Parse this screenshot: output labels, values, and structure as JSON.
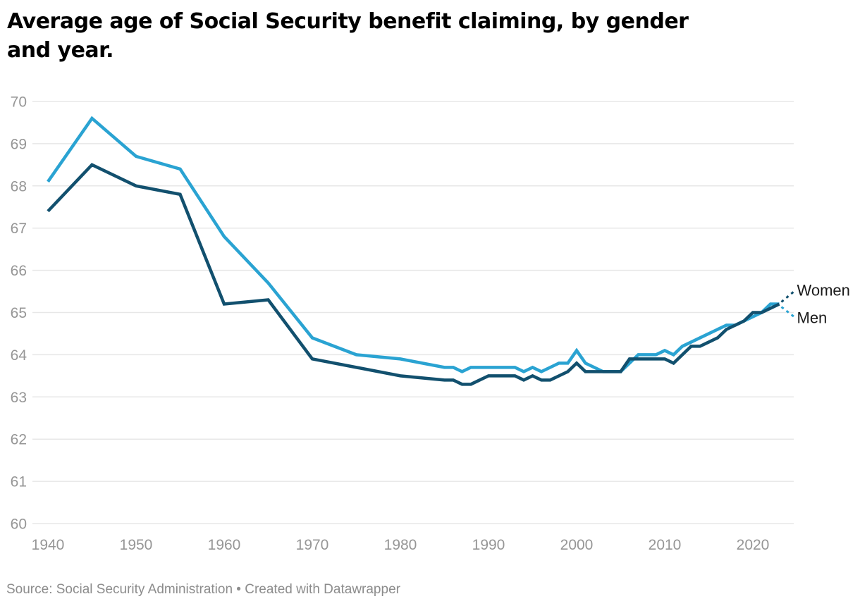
{
  "header": {
    "title_line1": "Average age of Social Security benefit claiming, by gender",
    "title_line2": "and year."
  },
  "source": {
    "text": "Source: Social Security Administration • Created with Datawrapper"
  },
  "colors": {
    "women_line": "#12506e",
    "men_line": "#2aa3d2",
    "gridline": "#e7e7e7",
    "axis_text": "#969696",
    "series_label_text": "#1b1b1b",
    "title_text": "#000000",
    "source_text": "#8c8c8c",
    "background": "#ffffff"
  },
  "chart_data": {
    "type": "line",
    "title": "Average age of Social Security benefit claiming, by gender and year.",
    "xlabel": "",
    "ylabel": "",
    "ylim": [
      60,
      70
    ],
    "xlim": [
      1940,
      2023
    ],
    "grid": "horizontal",
    "legend_position": "right-end-labels",
    "y_ticks": [
      70,
      69,
      68,
      67,
      66,
      65,
      64,
      63,
      62,
      61,
      60
    ],
    "x_ticks": [
      1940,
      1950,
      1960,
      1970,
      1980,
      1990,
      2000,
      2010,
      2020
    ],
    "x": [
      1940,
      1945,
      1950,
      1955,
      1960,
      1965,
      1970,
      1975,
      1980,
      1985,
      1986,
      1987,
      1988,
      1989,
      1990,
      1991,
      1992,
      1993,
      1994,
      1995,
      1996,
      1997,
      1998,
      1999,
      2000,
      2001,
      2002,
      2003,
      2004,
      2005,
      2006,
      2007,
      2008,
      2009,
      2010,
      2011,
      2012,
      2013,
      2014,
      2015,
      2016,
      2017,
      2018,
      2019,
      2020,
      2021,
      2022,
      2023
    ],
    "series": [
      {
        "name": "Men",
        "color": "#2aa3d2",
        "values": [
          68.1,
          69.6,
          68.7,
          68.4,
          66.8,
          65.7,
          64.4,
          64.0,
          63.9,
          63.7,
          63.7,
          63.6,
          63.7,
          63.7,
          63.7,
          63.7,
          63.7,
          63.7,
          63.6,
          63.7,
          63.6,
          63.7,
          63.8,
          63.8,
          64.1,
          63.8,
          63.7,
          63.6,
          63.6,
          63.6,
          63.8,
          64.0,
          64.0,
          64.0,
          64.1,
          64.0,
          64.2,
          64.3,
          64.4,
          64.5,
          64.6,
          64.7,
          64.7,
          64.8,
          64.9,
          65.0,
          65.2,
          65.2
        ]
      },
      {
        "name": "Women",
        "color": "#12506e",
        "values": [
          67.4,
          68.5,
          68.0,
          67.8,
          65.2,
          65.3,
          63.9,
          63.7,
          63.5,
          63.4,
          63.4,
          63.3,
          63.3,
          63.4,
          63.5,
          63.5,
          63.5,
          63.5,
          63.4,
          63.5,
          63.4,
          63.4,
          63.5,
          63.6,
          63.8,
          63.6,
          63.6,
          63.6,
          63.6,
          63.6,
          63.9,
          63.9,
          63.9,
          63.9,
          63.9,
          63.8,
          64.0,
          64.2,
          64.2,
          64.3,
          64.4,
          64.6,
          64.7,
          64.8,
          65.0,
          65.0,
          65.1,
          65.2
        ]
      }
    ]
  }
}
